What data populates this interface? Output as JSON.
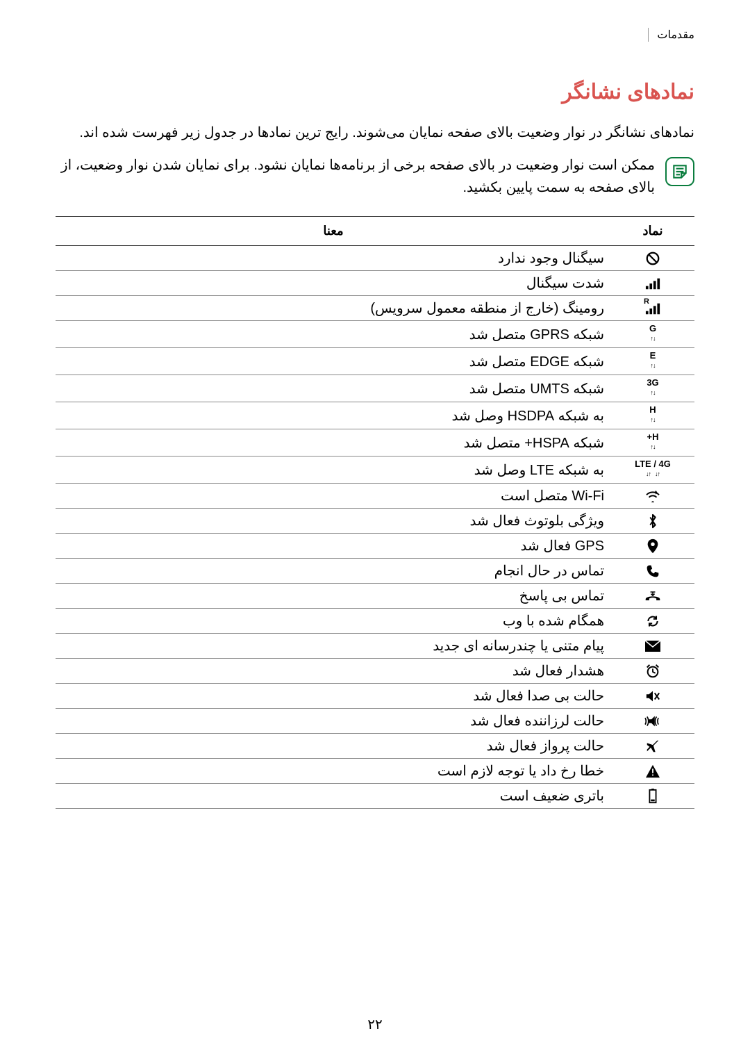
{
  "header": {
    "breadcrumb": "مقدمات"
  },
  "title": "نمادهای نشانگر",
  "intro": "نمادهای نشانگر در نوار وضعیت بالای صفحه نمایان می‌شوند. رایج ترین نمادها در جدول زیر فهرست شده اند.",
  "note": "ممکن است نوار وضعیت در بالای صفحه برخی از برنامه‌ها نمایان نشود. برای نمایان شدن نوار وضعیت، از بالای صفحه به سمت پایین بکشید.",
  "table": {
    "headers": {
      "icon": "نماد",
      "meaning": "معنا"
    },
    "rows": [
      {
        "icon_key": "no-signal",
        "meaning": "سیگنال وجود ندارد"
      },
      {
        "icon_key": "signal",
        "meaning": "شدت سیگنال"
      },
      {
        "icon_key": "roaming",
        "meaning": "رومینگ (خارج از منطقه معمول سرویس)"
      },
      {
        "icon_key": "gprs",
        "meaning": "شبکه GPRS متصل شد"
      },
      {
        "icon_key": "edge",
        "meaning": "شبکه EDGE متصل شد"
      },
      {
        "icon_key": "umts",
        "meaning": "شبکه UMTS متصل شد"
      },
      {
        "icon_key": "hsdpa",
        "meaning": "به شبکه HSDPA وصل شد"
      },
      {
        "icon_key": "hspa",
        "meaning": "شبکه HSPA+ متصل شد"
      },
      {
        "icon_key": "lte",
        "meaning": "به شبکه LTE وصل شد"
      },
      {
        "icon_key": "wifi",
        "meaning": "Wi-Fi متصل است"
      },
      {
        "icon_key": "bluetooth",
        "meaning": "ویژگی بلوتوث فعال شد"
      },
      {
        "icon_key": "gps",
        "meaning": "GPS فعال شد"
      },
      {
        "icon_key": "call",
        "meaning": "تماس در حال انجام"
      },
      {
        "icon_key": "missed",
        "meaning": "تماس بی پاسخ"
      },
      {
        "icon_key": "sync",
        "meaning": "همگام شده با وب"
      },
      {
        "icon_key": "message",
        "meaning": "پیام متنی یا چندرسانه ای جدید"
      },
      {
        "icon_key": "alarm",
        "meaning": "هشدار فعال شد"
      },
      {
        "icon_key": "mute",
        "meaning": "حالت بی صدا فعال شد"
      },
      {
        "icon_key": "vibrate",
        "meaning": "حالت لرزاننده فعال شد"
      },
      {
        "icon_key": "airplane",
        "meaning": "حالت پرواز فعال شد"
      },
      {
        "icon_key": "error",
        "meaning": "خطا رخ داد یا توجه لازم است"
      },
      {
        "icon_key": "battery-low",
        "meaning": "باتری ضعیف است"
      }
    ]
  },
  "icon_labels": {
    "gprs": "G",
    "edge": "E",
    "umts": "3G",
    "hsdpa": "H",
    "hspa": "H+",
    "lte_left": "LTE",
    "lte_right": "4G",
    "roaming": "R"
  },
  "page_number": "۲۲",
  "colors": {
    "title": "#d9534f",
    "border": "#888888",
    "header_border": "#333333",
    "note_border": "#0a7d3e"
  }
}
